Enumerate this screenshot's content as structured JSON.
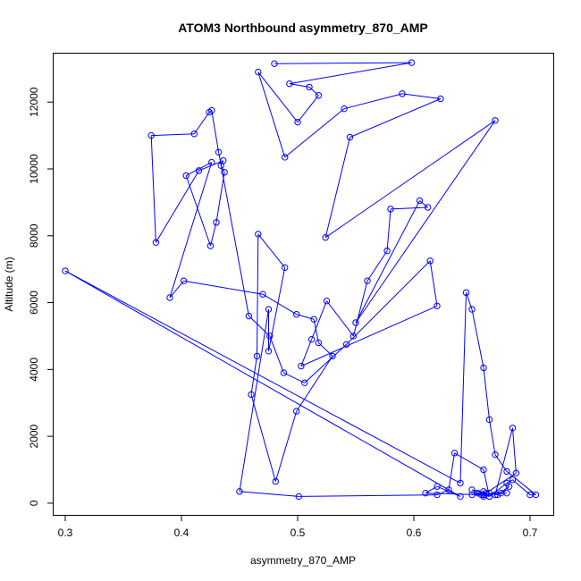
{
  "chart_data": {
    "type": "line",
    "title": "ATOM3 Northbound asymmetry_870_AMP",
    "xlabel": "asymmetry_870_AMP",
    "ylabel": "Altitude (m)",
    "xlim": [
      0.29,
      0.72
    ],
    "ylim": [
      -350,
      13450
    ],
    "xticks": [
      0.3,
      0.4,
      0.5,
      0.6,
      0.7
    ],
    "xtick_labels": [
      "0.3",
      "0.4",
      "0.5",
      "0.6",
      "0.7"
    ],
    "yticks": [
      0,
      2000,
      4000,
      6000,
      8000,
      10000,
      12000
    ],
    "ytick_labels": [
      "0",
      "2000",
      "4000",
      "6000",
      "8000",
      "10000",
      "12000"
    ],
    "grid": false,
    "legend": "none",
    "color": "#0000ff",
    "series": [
      {
        "x": [
          0.48,
          0.598,
          0.493,
          0.51,
          0.518,
          0.5,
          0.466,
          0.489,
          0.54,
          0.59,
          0.623,
          0.545,
          0.524,
          0.67,
          0.55,
          0.605,
          0.612,
          0.58,
          0.577,
          0.56,
          0.548,
          0.525,
          0.512,
          0.503,
          0.62,
          0.614,
          0.542,
          0.506,
          0.488,
          0.476,
          0.458,
          0.432,
          0.426,
          0.424,
          0.411,
          0.374,
          0.378,
          0.415,
          0.436,
          0.434,
          0.437,
          0.43,
          0.425,
          0.404,
          0.426,
          0.39,
          0.402,
          0.47,
          0.499,
          0.514,
          0.518,
          0.53,
          0.499,
          0.481,
          0.46,
          0.465,
          0.466,
          0.489,
          0.475,
          0.475,
          0.45,
          0.501,
          0.62,
          0.63,
          0.635,
          0.66,
          0.665,
          0.68,
          0.685,
          0.7,
          0.705,
          0.68,
          0.67,
          0.665,
          0.66,
          0.65,
          0.645,
          0.64,
          0.3,
          0.64,
          0.62,
          0.61,
          0.66,
          0.665,
          0.66,
          0.655,
          0.65,
          0.662,
          0.65,
          0.658,
          0.66,
          0.665,
          0.672,
          0.682,
          0.675,
          0.67,
          0.685,
          0.688,
          0.66,
          0.68
        ],
        "y": [
          13150,
          13180,
          12550,
          12450,
          12200,
          11400,
          12900,
          10350,
          11800,
          12250,
          12100,
          10950,
          7950,
          11450,
          5400,
          9050,
          8850,
          8800,
          7550,
          6650,
          5000,
          6050,
          4900,
          4100,
          5900,
          7250,
          4750,
          3600,
          3900,
          5000,
          5600,
          10500,
          11750,
          11700,
          11050,
          11000,
          7800,
          9950,
          10250,
          10100,
          9900,
          8400,
          7700,
          9800,
          10200,
          6150,
          6650,
          6250,
          5650,
          5500,
          4800,
          4400,
          2750,
          650,
          3250,
          4400,
          8050,
          7050,
          4550,
          5800,
          350,
          200,
          250,
          400,
          1500,
          1000,
          200,
          600,
          700,
          250,
          250,
          950,
          1450,
          2500,
          4050,
          5800,
          6300,
          600,
          6950,
          200,
          500,
          300,
          250,
          200,
          350,
          300,
          250,
          300,
          400,
          250,
          200,
          300,
          250,
          500,
          300,
          250,
          2250,
          900,
          250,
          300
        ]
      }
    ]
  }
}
